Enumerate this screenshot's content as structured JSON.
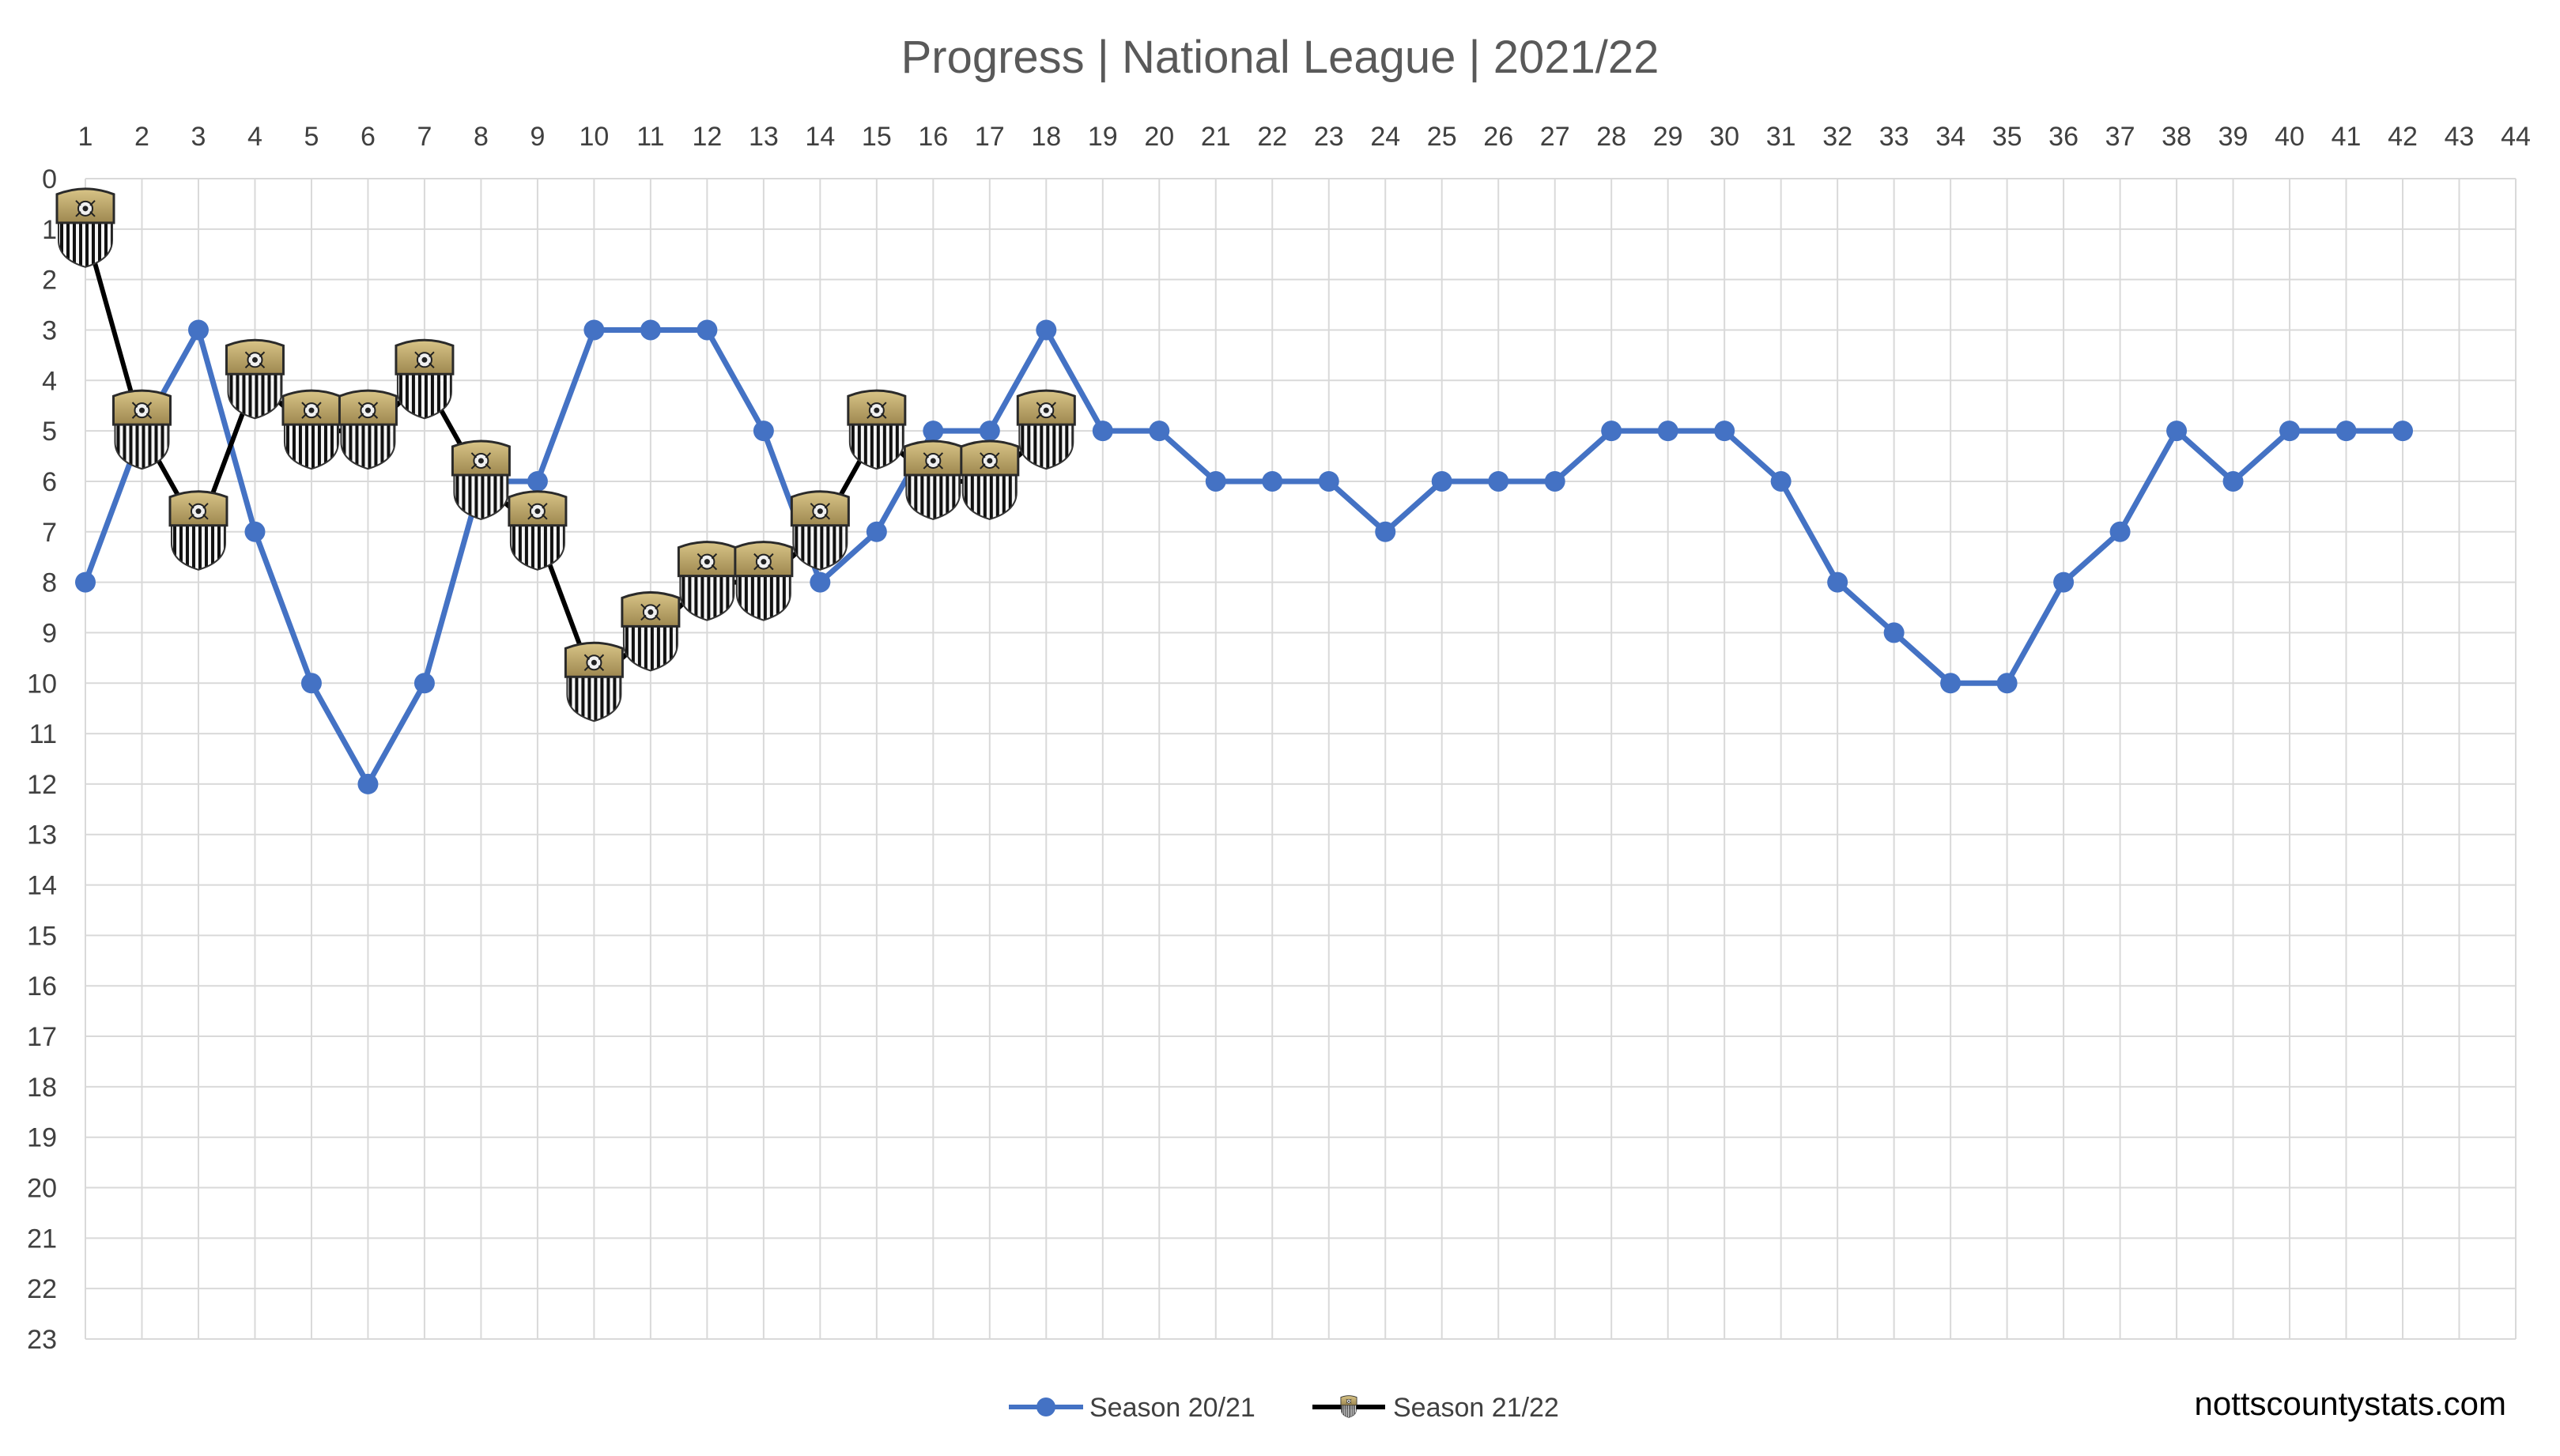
{
  "chart_data": {
    "type": "line",
    "title": "Progress | National League | 2021/22",
    "x": [
      1,
      2,
      3,
      4,
      5,
      6,
      7,
      8,
      9,
      10,
      11,
      12,
      13,
      14,
      15,
      16,
      17,
      18,
      19,
      20,
      21,
      22,
      23,
      24,
      25,
      26,
      27,
      28,
      29,
      30,
      31,
      32,
      33,
      34,
      35,
      36,
      37,
      38,
      39,
      40,
      41,
      42,
      43,
      44
    ],
    "xlim": [
      1,
      44
    ],
    "ylim": [
      0,
      23
    ],
    "y_axis_reversed": true,
    "x_axis_position": "top",
    "grid": true,
    "legend_position": "bottom-center",
    "series": [
      {
        "name": "Season 20/21",
        "color": "#4472c4",
        "marker": "circle",
        "x": [
          1,
          2,
          3,
          4,
          5,
          6,
          7,
          8,
          9,
          10,
          11,
          12,
          13,
          14,
          15,
          16,
          17,
          18,
          19,
          20,
          21,
          22,
          23,
          24,
          25,
          26,
          27,
          28,
          29,
          30,
          31,
          32,
          33,
          34,
          35,
          36,
          37,
          38,
          39,
          40,
          41,
          42
        ],
        "values": [
          8,
          5,
          3,
          7,
          10,
          12,
          10,
          6,
          6,
          3,
          3,
          3,
          5,
          8,
          7,
          5,
          5,
          3,
          5,
          5,
          6,
          6,
          6,
          7,
          6,
          6,
          6,
          5,
          5,
          5,
          6,
          8,
          9,
          10,
          10,
          8,
          7,
          5,
          6,
          5,
          5,
          5
        ]
      },
      {
        "name": "Season 21/22",
        "color": "#000000",
        "marker": "club-crest",
        "x": [
          1,
          2,
          3,
          4,
          5,
          6,
          7,
          8,
          9,
          10,
          11,
          12,
          13,
          14,
          15,
          16,
          17,
          18
        ],
        "values": [
          1,
          5,
          7,
          4,
          5,
          5,
          4,
          6,
          7,
          10,
          9,
          8,
          8,
          7,
          5,
          6,
          6,
          5
        ]
      }
    ]
  },
  "watermark": "nottscountystats.com"
}
